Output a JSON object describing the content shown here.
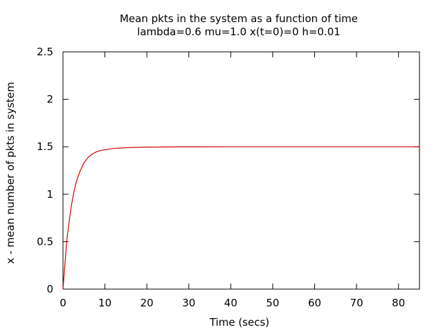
{
  "chart_data": {
    "type": "line",
    "title": "Mean pkts in the system as a function of time",
    "subtitle": "lambda=0.6 mu=1.0 x(t=0)=0 h=0.01",
    "xlabel": "Time (secs)",
    "ylabel": "x - mean number of pkts in system",
    "xlim": [
      0,
      85
    ],
    "ylim": [
      0,
      2.5
    ],
    "x_ticks": [
      0,
      10,
      20,
      30,
      40,
      50,
      60,
      70,
      80
    ],
    "y_ticks": [
      0,
      0.5,
      1,
      1.5,
      2,
      2.5
    ],
    "x_tick_labels": [
      "0",
      "10",
      "20",
      "30",
      "40",
      "50",
      "60",
      "70",
      "80"
    ],
    "y_tick_labels": [
      "0",
      "0.5",
      "1",
      "1.5",
      "2",
      "2.5"
    ],
    "grid": false,
    "series": [
      {
        "color": "#cc0000",
        "x": [
          0,
          0.5,
          1,
          1.5,
          2,
          2.5,
          3,
          3.5,
          4,
          5,
          6,
          7,
          8,
          9,
          10,
          12,
          14,
          16,
          18,
          20,
          22,
          25,
          28,
          32,
          37,
          45,
          55,
          65,
          75,
          85
        ],
        "values": [
          0,
          0.288,
          0.55,
          0.722,
          0.879,
          1.0,
          1.104,
          1.177,
          1.236,
          1.33,
          1.388,
          1.425,
          1.447,
          1.461,
          1.469,
          1.482,
          1.488,
          1.492,
          1.494,
          1.496,
          1.497,
          1.498,
          1.499,
          1.499,
          1.5,
          1.5,
          1.5,
          1.5,
          1.5,
          1.5
        ]
      }
    ]
  }
}
